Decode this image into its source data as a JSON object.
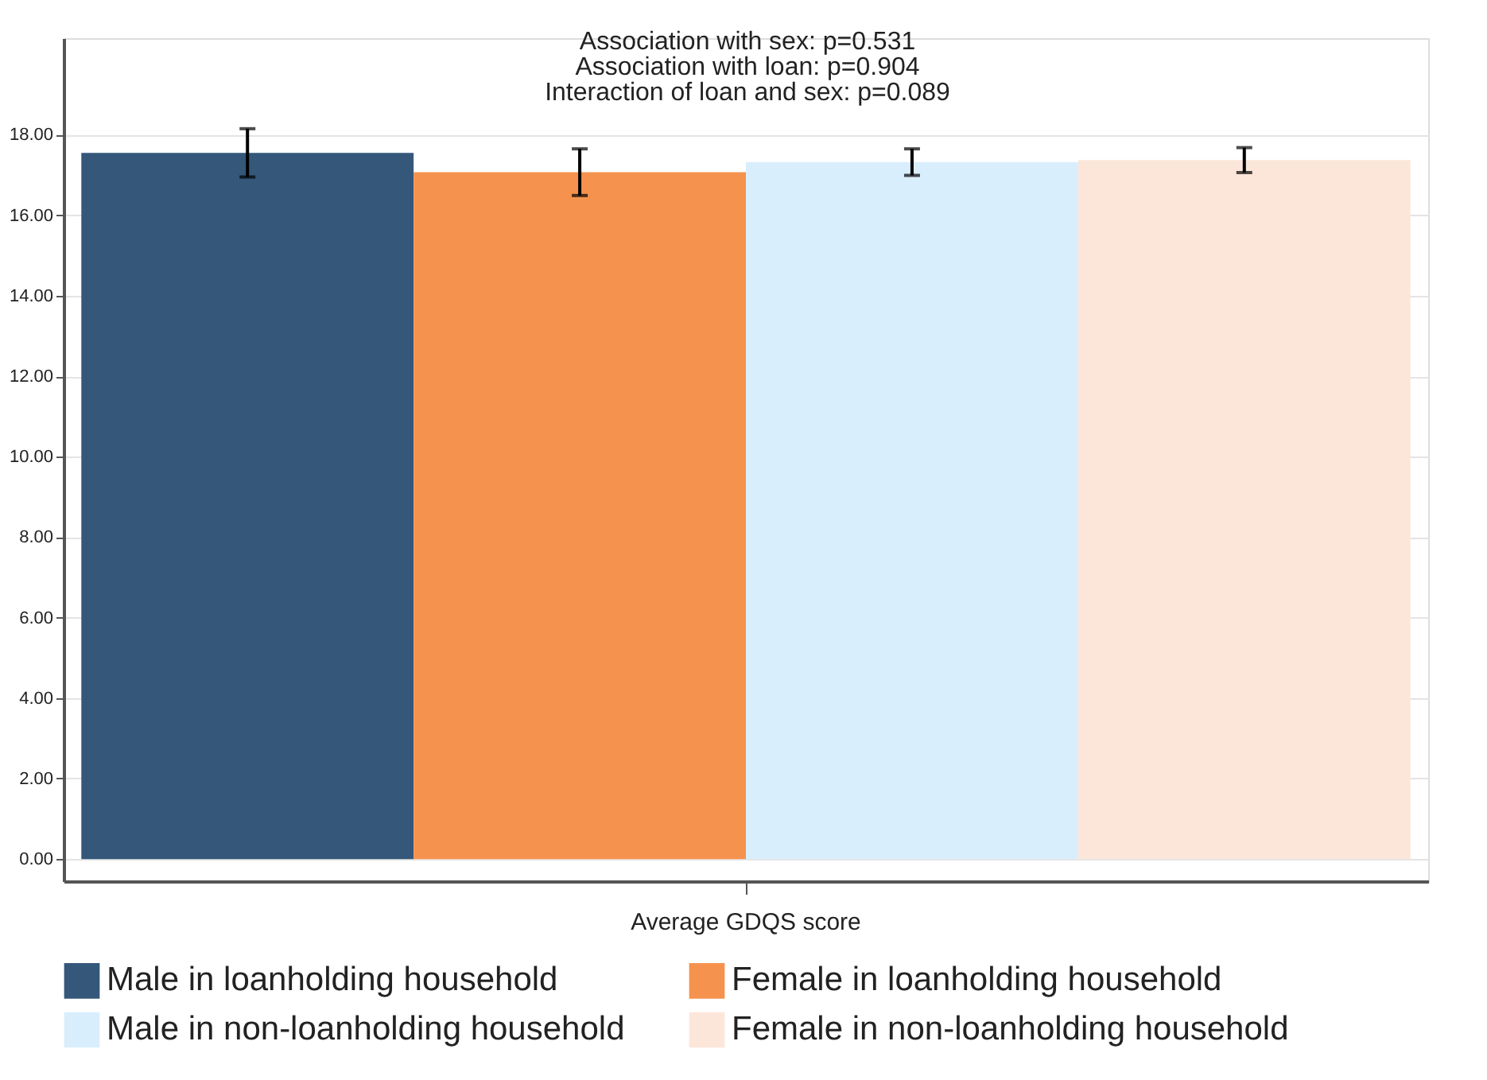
{
  "chart_data": {
    "type": "bar",
    "categories": [
      "Average GDQS score"
    ],
    "series": [
      {
        "name": "Male in loanholding household",
        "color": "#34577a",
        "values": [
          17.55
        ],
        "errors": [
          0.6
        ]
      },
      {
        "name": "Female in loanholding household",
        "color": "#f5924e",
        "values": [
          17.07
        ],
        "errors": [
          0.58
        ]
      },
      {
        "name": "Male in non-loanholding household",
        "color": "#d9eefc",
        "values": [
          17.32
        ],
        "errors": [
          0.33
        ]
      },
      {
        "name": "Female in non-loanholding household",
        "color": "#fce6da",
        "values": [
          17.37
        ],
        "errors": [
          0.31
        ]
      }
    ],
    "annotations": [
      "Association with sex:  p=0.531",
      "Association with loan: p=0.904",
      "Interaction of loan and sex: p=0.089"
    ],
    "ylim": [
      -0.55,
      20.4
    ],
    "yticks": [
      {
        "value": 0,
        "label": "0.00"
      },
      {
        "value": 2,
        "label": "2.00"
      },
      {
        "value": 4,
        "label": "4.00"
      },
      {
        "value": 6,
        "label": "6.00"
      },
      {
        "value": 8,
        "label": "8.00"
      },
      {
        "value": 10,
        "label": "10.00"
      },
      {
        "value": 12,
        "label": "12.00"
      },
      {
        "value": 14,
        "label": "14.00"
      },
      {
        "value": 16,
        "label": "16.00"
      },
      {
        "value": 18,
        "label": "18.00"
      }
    ],
    "grid": "y",
    "legend": "bottom"
  }
}
